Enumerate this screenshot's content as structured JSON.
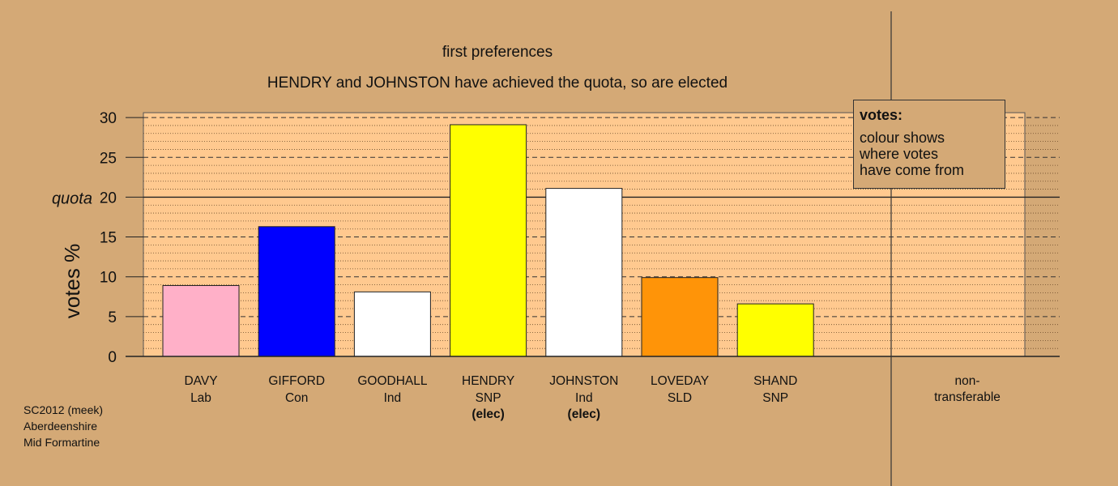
{
  "title": "first preferences",
  "subtitle": "HENDRY and JOHNSTON have achieved the quota, so are elected",
  "legend": {
    "title": "votes:",
    "lines": [
      "colour shows",
      "where votes",
      "have come from"
    ]
  },
  "source": [
    "SC2012 (meek)",
    "Aberdeenshire",
    "Mid Formartine"
  ],
  "chart_data": {
    "type": "bar",
    "title": "first preferences",
    "subtitle": "HENDRY and JOHNSTON have achieved the quota, so are elected",
    "ylabel": "votes %",
    "ylim": [
      0,
      30
    ],
    "yticks": [
      0,
      5,
      10,
      15,
      20,
      25,
      30
    ],
    "quota": 20,
    "quota_label": "quota",
    "grid": true,
    "legend_placement": "top-right",
    "categories": [
      {
        "name": "DAVY",
        "party": "Lab",
        "elected": "",
        "value": 8.9,
        "color": "#ffb0c8"
      },
      {
        "name": "GIFFORD",
        "party": "Con",
        "elected": "",
        "value": 16.3,
        "color": "#0000ff"
      },
      {
        "name": "GOODHALL",
        "party": "Ind",
        "elected": "",
        "value": 8.1,
        "color": "#ffffff"
      },
      {
        "name": "HENDRY",
        "party": "SNP",
        "elected": "(elec)",
        "value": 29.1,
        "color": "#ffff00"
      },
      {
        "name": "JOHNSTON",
        "party": "Ind",
        "elected": "(elec)",
        "value": 21.1,
        "color": "#ffffff"
      },
      {
        "name": "LOVEDAY",
        "party": "SLD",
        "elected": "",
        "value": 9.9,
        "color": "#ff9408"
      },
      {
        "name": "SHAND",
        "party": "SNP",
        "elected": "",
        "value": 6.6,
        "color": "#ffff00"
      }
    ],
    "nontransferable": {
      "label_lines": [
        "non-",
        "transferable"
      ],
      "value": 0
    }
  }
}
